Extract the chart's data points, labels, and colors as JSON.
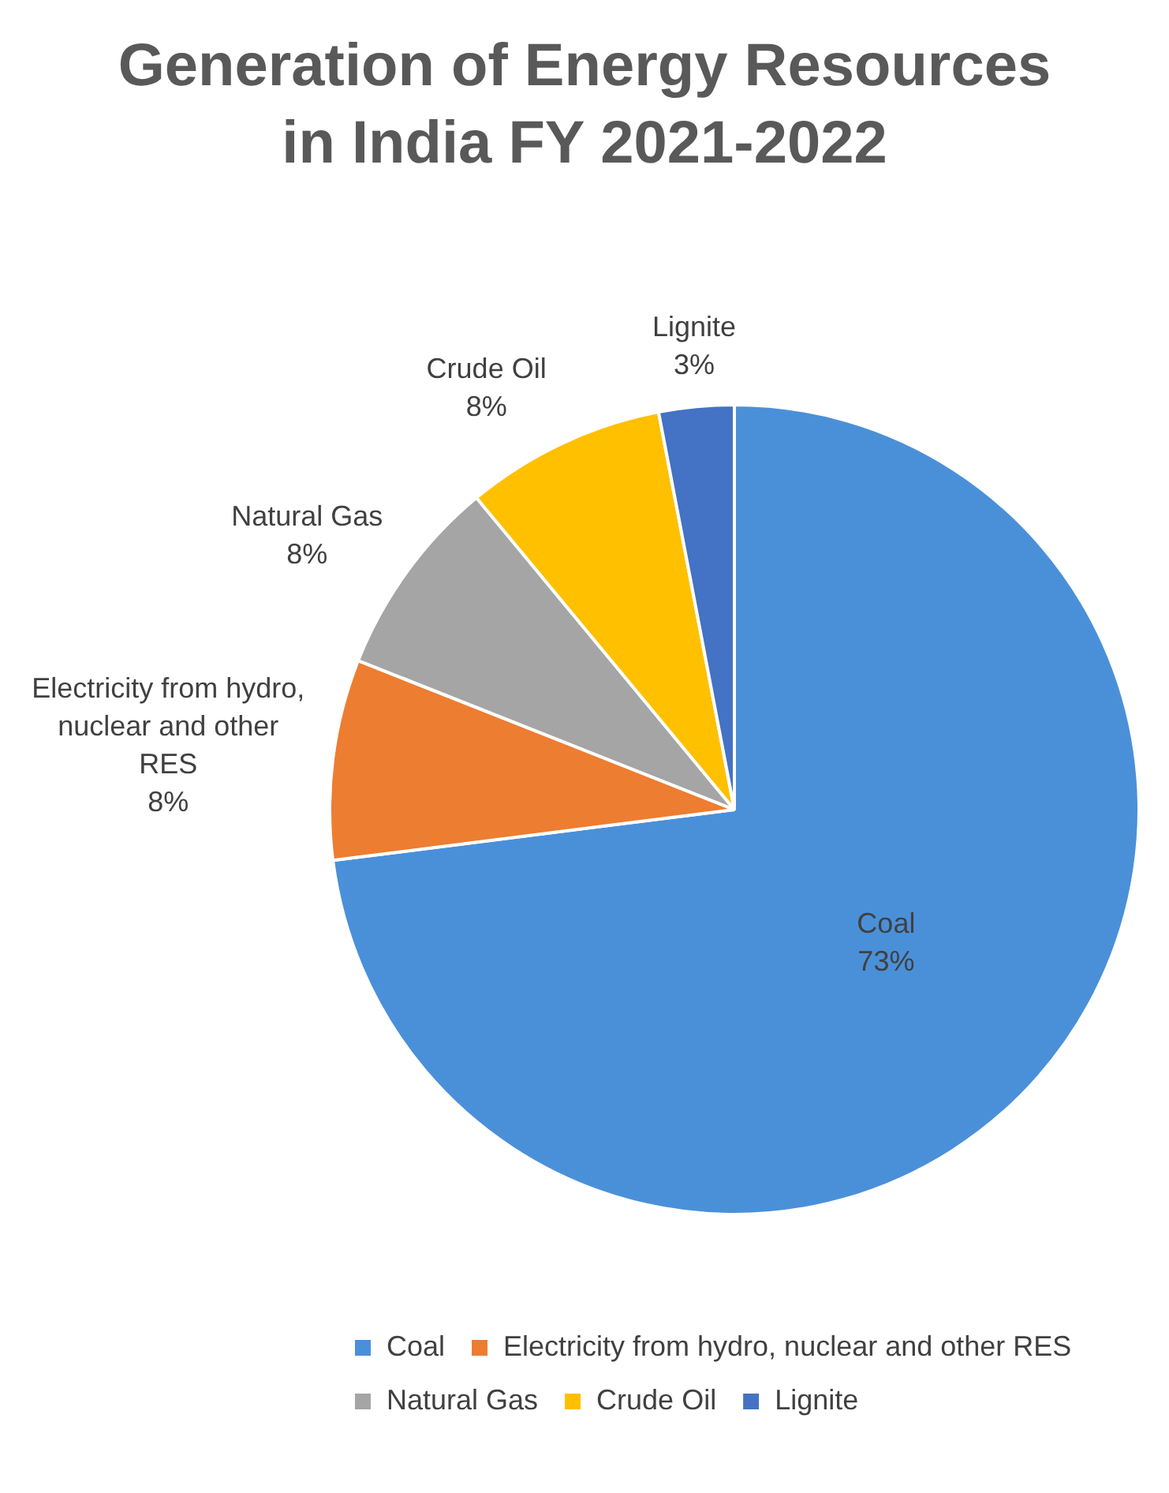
{
  "chart_data": {
    "type": "pie",
    "title": "Generation of Energy Resources in India FY 2021-2022",
    "categories": [
      "Coal",
      "Electricity from hydro, nuclear and other RES",
      "Natural Gas",
      "Crude Oil",
      "Lignite"
    ],
    "values": [
      73,
      8,
      8,
      8,
      3
    ],
    "colors": [
      "#4a90d9",
      "#ed7d31",
      "#a5a5a5",
      "#ffc000",
      "#4472c4"
    ],
    "value_labels": [
      "73%",
      "8%",
      "8%",
      "8%",
      "3%"
    ],
    "legend": "bottom"
  }
}
